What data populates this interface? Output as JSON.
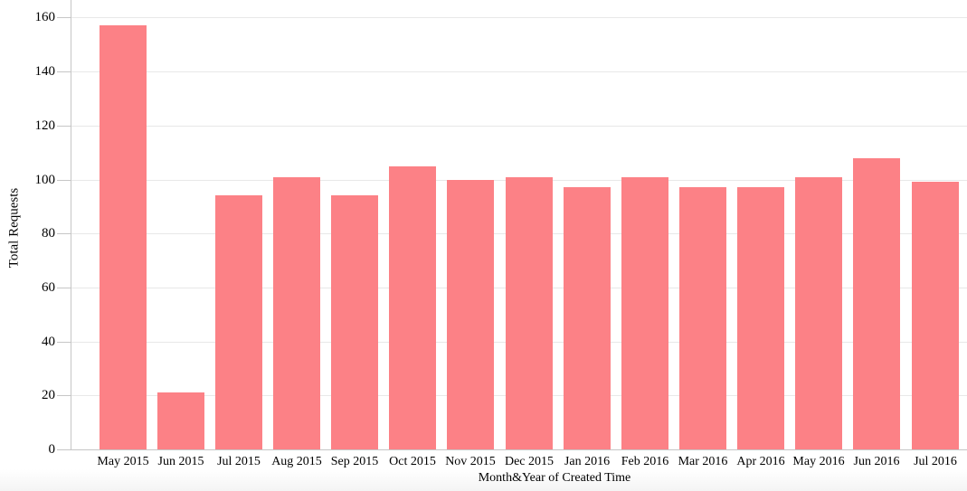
{
  "chart_data": {
    "type": "bar",
    "title": "",
    "xlabel": "Month&Year of Created Time",
    "ylabel": "Total Requests",
    "categories": [
      "May 2015",
      "Jun 2015",
      "Jul 2015",
      "Aug 2015",
      "Sep 2015",
      "Oct 2015",
      "Nov 2015",
      "Dec 2015",
      "Jan 2016",
      "Feb 2016",
      "Mar 2016",
      "Apr 2016",
      "May 2016",
      "Jun 2016",
      "Jul 2016"
    ],
    "values": [
      157,
      21,
      94,
      101,
      94,
      105,
      100,
      101,
      97,
      101,
      97,
      97,
      101,
      108,
      99
    ],
    "yticks": [
      0,
      20,
      40,
      60,
      80,
      100,
      120,
      140,
      160
    ],
    "ylim": [
      0,
      166.5
    ],
    "grid": true,
    "legend_position": "none",
    "bar_color": "#fc8186",
    "gridline_color": "#e8e8e8",
    "axis_color": "#c6c6c6",
    "text_color": "#000000"
  }
}
